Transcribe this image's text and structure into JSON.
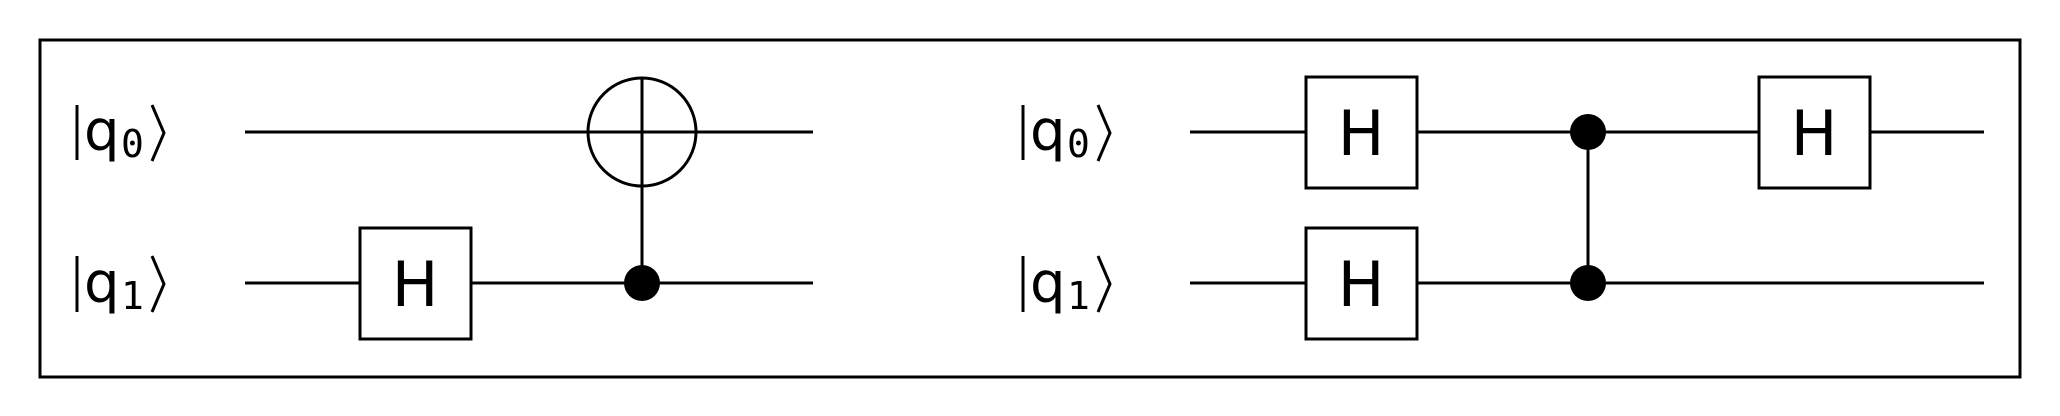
{
  "circuits": [
    {
      "qubit_labels": [
        {
          "symbol": "q",
          "index": "0"
        },
        {
          "symbol": "q",
          "index": "1"
        }
      ],
      "gates": [
        {
          "type": "H",
          "label": "H",
          "qubit": 1
        },
        {
          "type": "CNOT",
          "control": 1,
          "target": 0
        }
      ]
    },
    {
      "qubit_labels": [
        {
          "symbol": "q",
          "index": "0"
        },
        {
          "symbol": "q",
          "index": "1"
        }
      ],
      "gates": [
        {
          "type": "H",
          "label": "H",
          "qubit": 0
        },
        {
          "type": "H",
          "label": "H",
          "qubit": 1
        },
        {
          "type": "CZ",
          "control": 1,
          "target": 0
        },
        {
          "type": "H",
          "label": "H",
          "qubit": 0
        }
      ]
    }
  ],
  "colors": {
    "line": "#000000",
    "background": "#ffffff"
  }
}
